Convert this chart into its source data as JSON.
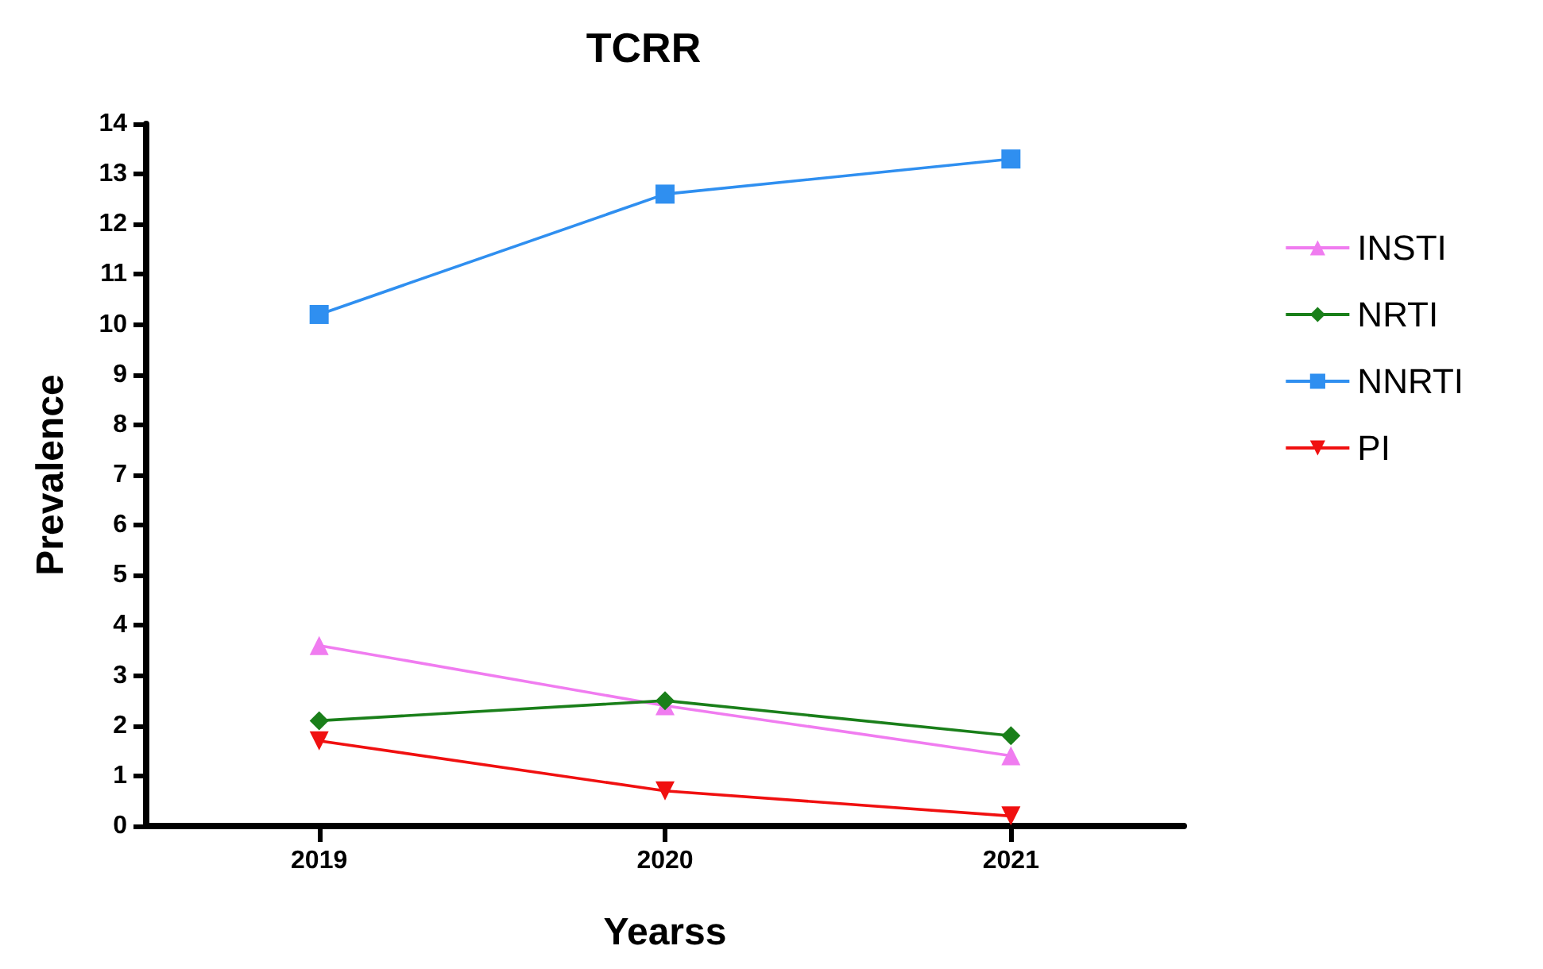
{
  "chart_data": {
    "type": "line",
    "title": "TCRR",
    "xlabel": "Yearss",
    "ylabel": "Prevalence",
    "categories": [
      "2019",
      "2020",
      "2021"
    ],
    "series": [
      {
        "name": "INSTI",
        "color": "#f07cf0",
        "marker": "triangle",
        "values": [
          3.6,
          2.4,
          1.4
        ]
      },
      {
        "name": "NRTI",
        "color": "#1a7f1a",
        "marker": "diamond",
        "values": [
          2.1,
          2.5,
          1.8
        ]
      },
      {
        "name": "NNRTI",
        "color": "#2f8ff0",
        "marker": "square",
        "values": [
          10.2,
          12.6,
          13.3
        ]
      },
      {
        "name": "PI",
        "color": "#f01010",
        "marker": "triangle-down",
        "values": [
          1.7,
          0.7,
          0.2
        ]
      }
    ],
    "ylim": [
      0,
      14
    ],
    "yticks": [
      0,
      1,
      2,
      3,
      4,
      5,
      6,
      7,
      8,
      9,
      10,
      11,
      12,
      13,
      14
    ],
    "grid": false,
    "legend": "top right"
  }
}
